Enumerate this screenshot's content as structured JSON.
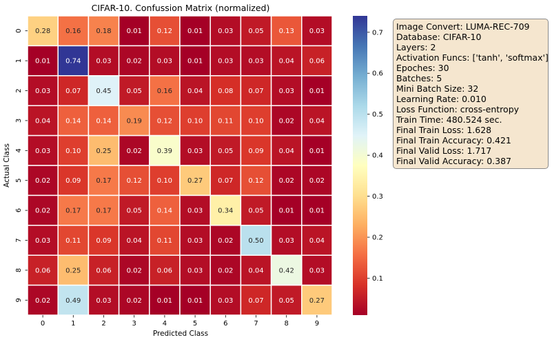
{
  "chart_data": {
    "type": "heatmap",
    "title": "CIFAR-10. Confussion Matrix (normalized)",
    "xlabel": "Predicted Class",
    "ylabel": "Actual Class",
    "x_categories": [
      "0",
      "1",
      "2",
      "3",
      "4",
      "5",
      "6",
      "7",
      "8",
      "9"
    ],
    "y_categories": [
      "0",
      "1",
      "2",
      "3",
      "4",
      "5",
      "6",
      "7",
      "8",
      "9"
    ],
    "values": [
      [
        0.28,
        0.16,
        0.18,
        0.01,
        0.12,
        0.01,
        0.03,
        0.05,
        0.13,
        0.03
      ],
      [
        0.01,
        0.74,
        0.03,
        0.02,
        0.03,
        0.01,
        0.03,
        0.03,
        0.04,
        0.06
      ],
      [
        0.03,
        0.07,
        0.45,
        0.05,
        0.16,
        0.04,
        0.08,
        0.07,
        0.03,
        0.01
      ],
      [
        0.04,
        0.14,
        0.14,
        0.19,
        0.12,
        0.1,
        0.11,
        0.1,
        0.02,
        0.04
      ],
      [
        0.03,
        0.1,
        0.25,
        0.02,
        0.39,
        0.03,
        0.05,
        0.09,
        0.04,
        0.01
      ],
      [
        0.02,
        0.09,
        0.17,
        0.12,
        0.1,
        0.27,
        0.07,
        0.12,
        0.02,
        0.02
      ],
      [
        0.02,
        0.17,
        0.17,
        0.05,
        0.14,
        0.03,
        0.34,
        0.05,
        0.01,
        0.01
      ],
      [
        0.03,
        0.11,
        0.09,
        0.04,
        0.11,
        0.03,
        0.02,
        0.5,
        0.03,
        0.04
      ],
      [
        0.06,
        0.25,
        0.06,
        0.02,
        0.06,
        0.03,
        0.02,
        0.04,
        0.42,
        0.03
      ],
      [
        0.02,
        0.49,
        0.03,
        0.02,
        0.01,
        0.01,
        0.03,
        0.07,
        0.05,
        0.27
      ]
    ],
    "colormap": "RdYlBu",
    "vmin": 0.01,
    "vmax": 0.74,
    "colorbar_ticks": [
      "0.1",
      "0.2",
      "0.3",
      "0.4",
      "0.5",
      "0.6",
      "0.7"
    ],
    "colorbar_tick_values": [
      0.1,
      0.2,
      0.3,
      0.4,
      0.5,
      0.6,
      0.7
    ]
  },
  "info_box": {
    "lines": [
      "Image Convert: LUMA-REC-709",
      "Database: CIFAR-10",
      "Layers: 2",
      "Activation Funcs: ['tanh', 'softmax']",
      "Epoches: 30",
      "Batches: 5",
      "Mini Batch Size: 32",
      "Learning Rate: 0.010",
      "Loss Function: cross-entropy",
      "Train Time: 480.524 sec.",
      "Final Train Loss: 1.628",
      "Final Train Accuracy: 0.421",
      "Final Valid Loss: 1.717",
      "Final Valid Accuracy: 0.387"
    ]
  }
}
